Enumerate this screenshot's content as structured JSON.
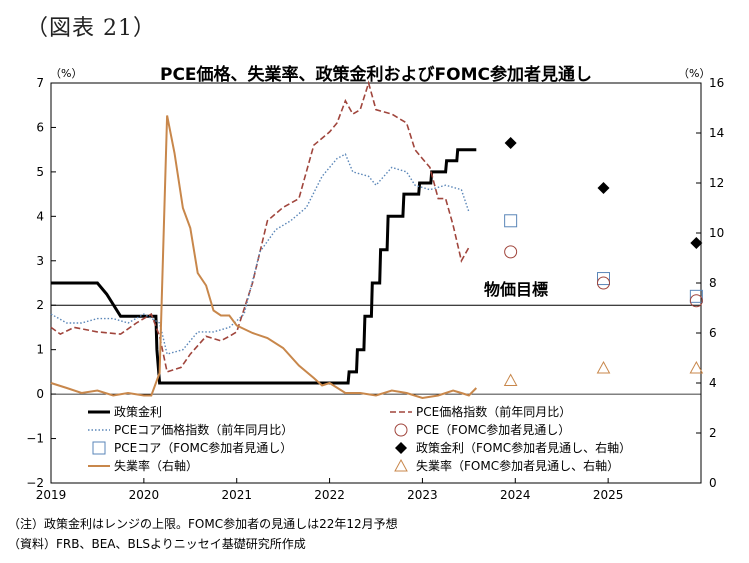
{
  "figure_label": "（図表 21）",
  "notes": [
    "（注）政策金利はレンジの上限。FOMC参加者の見通しは22年12月予想",
    "（資料）FRB、BEA、BLSよりニッセイ基礎研究所作成"
  ],
  "chart_data": {
    "type": "line",
    "title": "PCE価格、失業率、政策金利およびFOMC参加者見通し",
    "left_axis": {
      "unit": "（%）",
      "min": -2,
      "max": 7,
      "ticks": [
        -2,
        -1,
        0,
        1,
        2,
        3,
        4,
        5,
        6,
        7
      ]
    },
    "right_axis": {
      "unit": "（%）",
      "min": 0,
      "max": 16,
      "ticks": [
        0,
        2,
        4,
        6,
        8,
        10,
        12,
        14,
        16
      ]
    },
    "x_axis": {
      "min": 2019.0,
      "max": 2026.0,
      "tick_labels": [
        "2019",
        "2020",
        "2021",
        "2022",
        "2023",
        "2024",
        "2025"
      ]
    },
    "reference_line": {
      "value": 2,
      "label": "物価目標"
    },
    "grid": false,
    "legend_position": "bottom",
    "series": [
      {
        "name": "政策金利",
        "axis": "left",
        "style": "solid",
        "color": "#000000",
        "width": 3,
        "points": [
          [
            2019.0,
            2.5
          ],
          [
            2019.5,
            2.5
          ],
          [
            2019.6,
            2.25
          ],
          [
            2019.75,
            1.75
          ],
          [
            2020.0,
            1.75
          ],
          [
            2020.08,
            1.75
          ],
          [
            2020.13,
            1.75
          ],
          [
            2020.14,
            1.0
          ],
          [
            2020.17,
            0.25
          ],
          [
            2022.0,
            0.25
          ],
          [
            2022.2,
            0.25
          ],
          [
            2022.21,
            0.5
          ],
          [
            2022.29,
            0.5
          ],
          [
            2022.3,
            1.0
          ],
          [
            2022.37,
            1.0
          ],
          [
            2022.38,
            1.75
          ],
          [
            2022.45,
            1.75
          ],
          [
            2022.46,
            2.5
          ],
          [
            2022.54,
            2.5
          ],
          [
            2022.55,
            3.25
          ],
          [
            2022.62,
            3.25
          ],
          [
            2022.63,
            4.0
          ],
          [
            2022.79,
            4.0
          ],
          [
            2022.8,
            4.5
          ],
          [
            2022.96,
            4.5
          ],
          [
            2022.97,
            4.75
          ],
          [
            2023.09,
            4.75
          ],
          [
            2023.1,
            5.0
          ],
          [
            2023.25,
            5.0
          ],
          [
            2023.26,
            5.25
          ],
          [
            2023.37,
            5.25
          ],
          [
            2023.38,
            5.5
          ],
          [
            2023.58,
            5.5
          ]
        ]
      },
      {
        "name": "PCE価格指数（前年同月比）",
        "axis": "left",
        "style": "dashed",
        "color": "#a0453c",
        "width": 1.6,
        "points": [
          [
            2019.0,
            1.5
          ],
          [
            2019.1,
            1.35
          ],
          [
            2019.25,
            1.5
          ],
          [
            2019.5,
            1.4
          ],
          [
            2019.75,
            1.35
          ],
          [
            2019.92,
            1.6
          ],
          [
            2020.08,
            1.8
          ],
          [
            2020.17,
            1.3
          ],
          [
            2020.25,
            0.5
          ],
          [
            2020.4,
            0.6
          ],
          [
            2020.5,
            0.9
          ],
          [
            2020.67,
            1.3
          ],
          [
            2020.83,
            1.2
          ],
          [
            2020.92,
            1.3
          ],
          [
            2021.0,
            1.4
          ],
          [
            2021.17,
            2.5
          ],
          [
            2021.33,
            3.9
          ],
          [
            2021.5,
            4.2
          ],
          [
            2021.67,
            4.4
          ],
          [
            2021.83,
            5.6
          ],
          [
            2022.0,
            5.9
          ],
          [
            2022.08,
            6.1
          ],
          [
            2022.17,
            6.6
          ],
          [
            2022.25,
            6.3
          ],
          [
            2022.33,
            6.4
          ],
          [
            2022.42,
            7.0
          ],
          [
            2022.5,
            6.4
          ],
          [
            2022.67,
            6.3
          ],
          [
            2022.83,
            6.1
          ],
          [
            2022.92,
            5.5
          ],
          [
            2023.0,
            5.3
          ],
          [
            2023.08,
            5.1
          ],
          [
            2023.17,
            4.4
          ],
          [
            2023.25,
            4.4
          ],
          [
            2023.33,
            3.8
          ],
          [
            2023.42,
            3.0
          ],
          [
            2023.5,
            3.3
          ]
        ]
      },
      {
        "name": "PCEコア価格指数（前年同月比）",
        "axis": "left",
        "style": "dotted",
        "color": "#5a86b8",
        "width": 1.4,
        "points": [
          [
            2019.0,
            1.8
          ],
          [
            2019.17,
            1.6
          ],
          [
            2019.33,
            1.6
          ],
          [
            2019.5,
            1.7
          ],
          [
            2019.67,
            1.7
          ],
          [
            2019.83,
            1.6
          ],
          [
            2020.0,
            1.8
          ],
          [
            2020.17,
            1.6
          ],
          [
            2020.25,
            0.9
          ],
          [
            2020.42,
            1.0
          ],
          [
            2020.58,
            1.4
          ],
          [
            2020.75,
            1.4
          ],
          [
            2020.92,
            1.5
          ],
          [
            2021.08,
            1.8
          ],
          [
            2021.25,
            3.2
          ],
          [
            2021.42,
            3.7
          ],
          [
            2021.58,
            3.9
          ],
          [
            2021.75,
            4.2
          ],
          [
            2021.92,
            4.9
          ],
          [
            2022.08,
            5.3
          ],
          [
            2022.17,
            5.4
          ],
          [
            2022.25,
            5.0
          ],
          [
            2022.42,
            4.9
          ],
          [
            2022.5,
            4.7
          ],
          [
            2022.67,
            5.1
          ],
          [
            2022.83,
            5.0
          ],
          [
            2022.92,
            4.7
          ],
          [
            2023.08,
            4.6
          ],
          [
            2023.25,
            4.7
          ],
          [
            2023.42,
            4.6
          ],
          [
            2023.5,
            4.1
          ]
        ]
      },
      {
        "name": "失業率（右軸）",
        "axis": "right",
        "style": "solid",
        "color": "#c8874b",
        "width": 2,
        "points": [
          [
            2019.0,
            4.0
          ],
          [
            2019.17,
            3.8
          ],
          [
            2019.33,
            3.6
          ],
          [
            2019.5,
            3.7
          ],
          [
            2019.67,
            3.5
          ],
          [
            2019.83,
            3.6
          ],
          [
            2020.0,
            3.5
          ],
          [
            2020.08,
            3.5
          ],
          [
            2020.17,
            4.4
          ],
          [
            2020.25,
            14.7
          ],
          [
            2020.33,
            13.2
          ],
          [
            2020.42,
            11.0
          ],
          [
            2020.5,
            10.2
          ],
          [
            2020.58,
            8.4
          ],
          [
            2020.67,
            7.9
          ],
          [
            2020.75,
            6.9
          ],
          [
            2020.83,
            6.7
          ],
          [
            2020.92,
            6.7
          ],
          [
            2021.0,
            6.3
          ],
          [
            2021.17,
            6.0
          ],
          [
            2021.33,
            5.8
          ],
          [
            2021.5,
            5.4
          ],
          [
            2021.67,
            4.7
          ],
          [
            2021.83,
            4.2
          ],
          [
            2021.92,
            3.9
          ],
          [
            2022.0,
            4.0
          ],
          [
            2022.17,
            3.6
          ],
          [
            2022.33,
            3.6
          ],
          [
            2022.5,
            3.5
          ],
          [
            2022.67,
            3.7
          ],
          [
            2022.83,
            3.6
          ],
          [
            2023.0,
            3.4
          ],
          [
            2023.17,
            3.5
          ],
          [
            2023.33,
            3.7
          ],
          [
            2023.42,
            3.6
          ],
          [
            2023.5,
            3.5
          ],
          [
            2023.58,
            3.8
          ]
        ]
      }
    ],
    "projections": [
      {
        "name": "PCEコア（FOMC参加者見通し）",
        "axis": "left",
        "marker": "open-square",
        "color": "#5a86b8",
        "points": [
          [
            2023.95,
            3.9
          ],
          [
            2024.95,
            2.6
          ],
          [
            2025.95,
            2.2
          ]
        ]
      },
      {
        "name": "PCE（FOMC参加者見通し）",
        "axis": "left",
        "marker": "open-circle",
        "color": "#a0453c",
        "points": [
          [
            2023.95,
            3.2
          ],
          [
            2024.95,
            2.5
          ],
          [
            2025.95,
            2.1
          ]
        ]
      },
      {
        "name": "政策金利（FOMC参加者見通し、右軸）",
        "axis": "right",
        "marker": "filled-diamond",
        "color": "#000000",
        "points": [
          [
            2023.95,
            13.6
          ],
          [
            2024.95,
            11.8
          ],
          [
            2025.95,
            9.6
          ]
        ]
      },
      {
        "name": "失業率（FOMC参加者見通し、右軸）",
        "axis": "right",
        "marker": "open-triangle",
        "color": "#c8874b",
        "points": [
          [
            2023.95,
            4.1
          ],
          [
            2024.95,
            4.6
          ],
          [
            2025.95,
            4.6
          ]
        ]
      }
    ],
    "legend": [
      {
        "label": "政策金利",
        "kind": "line",
        "style": "solid",
        "color": "#000000",
        "width": 3
      },
      {
        "label": "PCE価格指数（前年同月比）",
        "kind": "line",
        "style": "dashed",
        "color": "#a0453c",
        "width": 1.6
      },
      {
        "label": "PCEコア価格指数（前年同月比）",
        "kind": "line",
        "style": "dotted",
        "color": "#5a86b8",
        "width": 1.4
      },
      {
        "label": "PCE（FOMC参加者見通し）",
        "kind": "marker",
        "marker": "open-circle",
        "color": "#a0453c"
      },
      {
        "label": "PCEコア（FOMC参加者見通し）",
        "kind": "marker",
        "marker": "open-square",
        "color": "#5a86b8"
      },
      {
        "label": "政策金利（FOMC参加者見通し、右軸）",
        "kind": "marker",
        "marker": "filled-diamond",
        "color": "#000000"
      },
      {
        "label": "失業率（右軸）",
        "kind": "line",
        "style": "solid",
        "color": "#c8874b",
        "width": 2
      },
      {
        "label": "失業率（FOMC参加者見通し、右軸）",
        "kind": "marker",
        "marker": "open-triangle",
        "color": "#c8874b"
      }
    ]
  }
}
